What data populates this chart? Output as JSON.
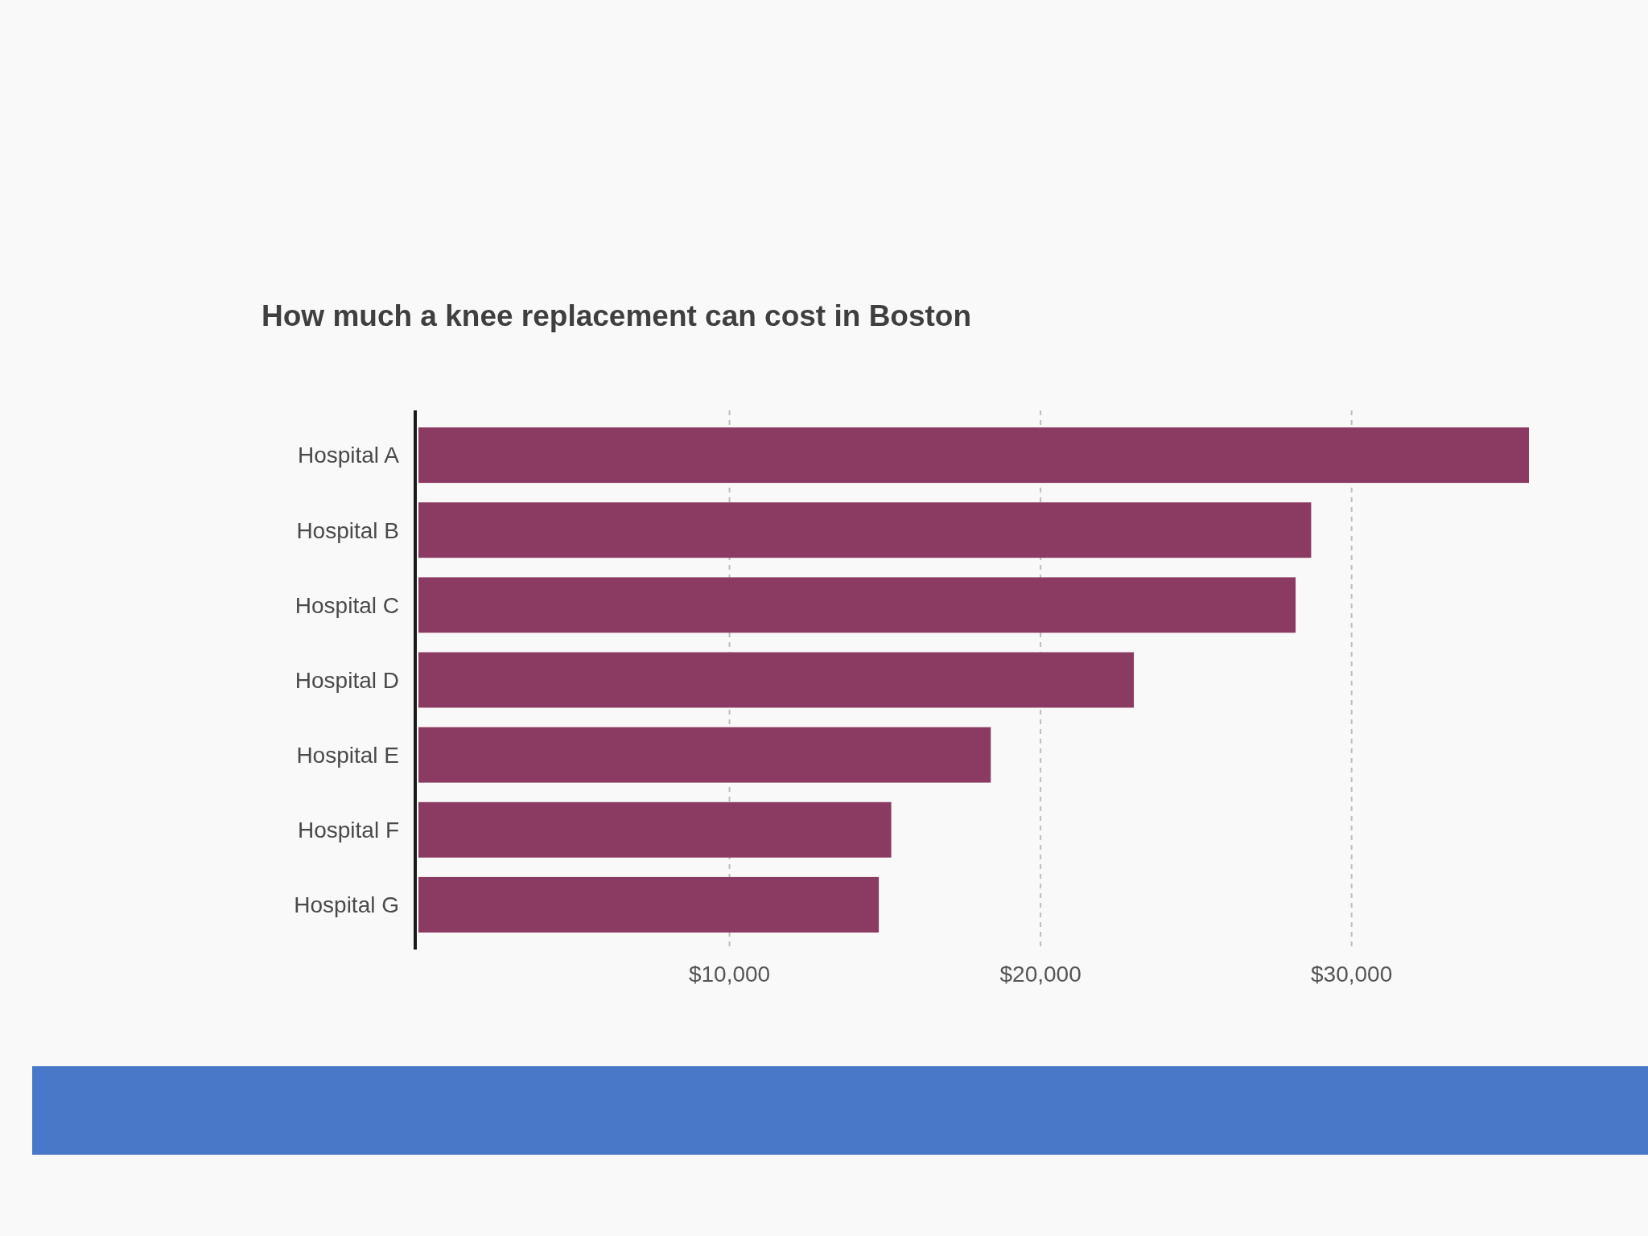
{
  "chart_data": {
    "type": "bar",
    "orientation": "horizontal",
    "title": "How much a knee replacement can cost in Boston",
    "categories": [
      "Hospital A",
      "Hospital B",
      "Hospital C",
      "Hospital D",
      "Hospital E",
      "Hospital F",
      "Hospital G"
    ],
    "values": [
      35700,
      28700,
      28200,
      23000,
      18400,
      15200,
      14800
    ],
    "color": "#8b3a62",
    "xlim": [
      0,
      35700
    ],
    "xticks": [
      {
        "value": 10000,
        "label": "$10,000"
      },
      {
        "value": 20000,
        "label": "$20,000"
      },
      {
        "value": 30000,
        "label": "$30,000"
      }
    ],
    "grid": "x"
  }
}
